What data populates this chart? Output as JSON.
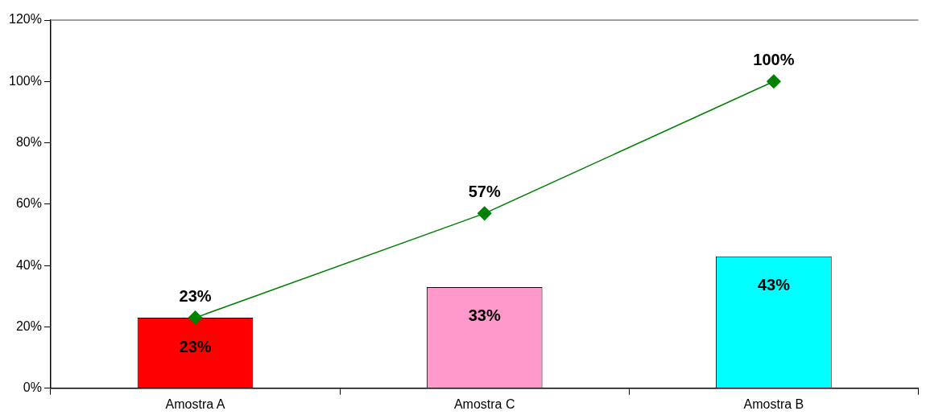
{
  "chart_data": {
    "type": "bar",
    "categories": [
      "Amostra A",
      "Amostra C",
      "Amostra B"
    ],
    "series": [
      {
        "colors": [
          "#ff0000",
          "#ff99cc",
          "#00ffff"
        ],
        "values": [
          23,
          33,
          43
        ],
        "value_labels": [
          "23%",
          "33%",
          "43%"
        ]
      },
      {
        "type": "line",
        "color": "#008000",
        "values": [
          23,
          57,
          100
        ],
        "value_labels": [
          "23%",
          "57%",
          "100%"
        ]
      }
    ],
    "ylim": [
      0,
      120
    ],
    "yticks": [
      {
        "value": 0,
        "label": "0%"
      },
      {
        "value": 20,
        "label": "20%"
      },
      {
        "value": 40,
        "label": "40%"
      },
      {
        "value": 60,
        "label": "60%"
      },
      {
        "value": 80,
        "label": "80%"
      },
      {
        "value": 100,
        "label": "100%"
      },
      {
        "value": 120,
        "label": "120%"
      }
    ],
    "grid": false,
    "legend": false,
    "marker": "diamond",
    "line_style": "solid"
  }
}
